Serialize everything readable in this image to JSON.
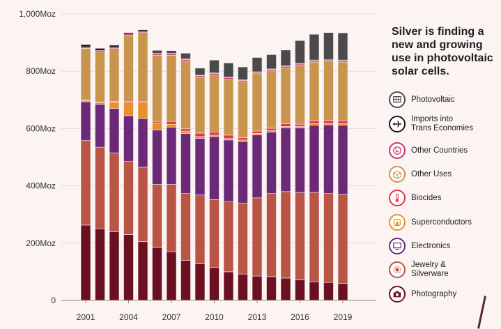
{
  "headline": "Silver is finding a new and growing use in photovoltaic solar cells.",
  "colors": {
    "background": "#fcf3f3",
    "Photovoltaic": "#4a4a4a",
    "Imports into Trans Economies": "#151515",
    "Other Countries": "#c9336b",
    "Other Uses": "#c8954e",
    "Biocides": "#e0354a",
    "Superconductors": "#e8902a",
    "Electronics": "#6a2a78",
    "Jewelry & Silverware": "#b85545",
    "Photography": "#6b1020"
  },
  "legend": [
    {
      "key": "photovoltaic",
      "label": "Photovoltaic",
      "icon": "solar-panel-icon",
      "color": "#4a4a4a"
    },
    {
      "key": "imports",
      "label": "Imports into\nTrans Economies",
      "icon": "airplane-icon",
      "color": "#151515"
    },
    {
      "key": "other-countries",
      "label": "Other Countries",
      "icon": "globe-icon",
      "color": "#c9336b"
    },
    {
      "key": "other-uses",
      "label": "Other Uses",
      "icon": "box-icon",
      "color": "#c8954e"
    },
    {
      "key": "biocides",
      "label": "Biocides",
      "icon": "thermometer-icon",
      "color": "#e0354a"
    },
    {
      "key": "superconductors",
      "label": "Superconductors",
      "icon": "magnet-icon",
      "color": "#e8902a"
    },
    {
      "key": "electronics",
      "label": "Electronics",
      "icon": "monitor-icon",
      "color": "#6a2a78"
    },
    {
      "key": "jewelry",
      "label": "Jewelry &\nSilverware",
      "icon": "ornament-icon",
      "color": "#b85545"
    },
    {
      "key": "photography",
      "label": "Photography",
      "icon": "camera-icon",
      "color": "#6b1020"
    }
  ],
  "chart_data": {
    "type": "bar",
    "stacked": true,
    "title": "",
    "xlabel": "",
    "ylabel": "",
    "ylim": [
      0,
      1000
    ],
    "y_ticks": [
      0,
      200,
      400,
      600,
      800,
      1000
    ],
    "y_tick_labels": [
      "0",
      "200Moz",
      "400Moz",
      "600Moz",
      "800Moz",
      "1,000Moz"
    ],
    "x_tick_labels": [
      "2001",
      "2004",
      "2007",
      "2010",
      "2013",
      "2016",
      "2019"
    ],
    "x_tick_years": [
      2001,
      2004,
      2007,
      2010,
      2013,
      2016,
      2019
    ],
    "grid": "horizontal",
    "legend_position": "right",
    "categories": [
      2001,
      2002,
      2003,
      2004,
      2005,
      2006,
      2007,
      2008,
      2009,
      2010,
      2011,
      2012,
      2013,
      2014,
      2015,
      2016,
      2017,
      2018,
      2019
    ],
    "series": [
      {
        "name": "Photography",
        "values": [
          263,
          250,
          240,
          230,
          205,
          185,
          170,
          140,
          128,
          115,
          100,
          92,
          85,
          83,
          78,
          72,
          65,
          63,
          60
        ]
      },
      {
        "name": "Jewelry & Silverware",
        "values": [
          295,
          285,
          275,
          255,
          260,
          220,
          235,
          233,
          240,
          237,
          245,
          248,
          273,
          290,
          302,
          305,
          312,
          310,
          310
        ]
      },
      {
        "name": "Electronics",
        "values": [
          135,
          150,
          155,
          160,
          170,
          190,
          200,
          210,
          198,
          220,
          215,
          215,
          220,
          215,
          222,
          225,
          235,
          240,
          242
        ]
      },
      {
        "name": "Superconductors",
        "values": [
          5,
          6,
          22,
          45,
          55,
          25,
          10,
          8,
          6,
          5,
          5,
          5,
          5,
          5,
          5,
          5,
          5,
          5,
          5
        ]
      },
      {
        "name": "Biocides",
        "values": [
          2,
          2,
          2,
          5,
          5,
          5,
          10,
          8,
          12,
          10,
          12,
          8,
          8,
          8,
          10,
          8,
          10,
          10,
          10
        ]
      },
      {
        "name": "Other Uses",
        "values": [
          180,
          175,
          185,
          230,
          240,
          230,
          230,
          237,
          195,
          200,
          195,
          195,
          200,
          200,
          195,
          205,
          205,
          205,
          205
        ]
      },
      {
        "name": "Other Countries",
        "values": [
          5,
          5,
          5,
          5,
          5,
          5,
          5,
          5,
          5,
          5,
          5,
          5,
          5,
          5,
          5,
          5,
          5,
          5,
          5
        ]
      },
      {
        "name": "Imports into Trans Economies",
        "values": [
          8,
          7,
          7,
          5,
          5,
          3,
          2,
          2,
          2,
          2,
          2,
          2,
          2,
          2,
          2,
          2,
          2,
          2,
          2
        ]
      },
      {
        "name": "Photovoltaic",
        "values": [
          0,
          0,
          0,
          0,
          0,
          10,
          10,
          20,
          25,
          45,
          50,
          45,
          50,
          50,
          55,
          80,
          90,
          95,
          95
        ]
      }
    ]
  }
}
